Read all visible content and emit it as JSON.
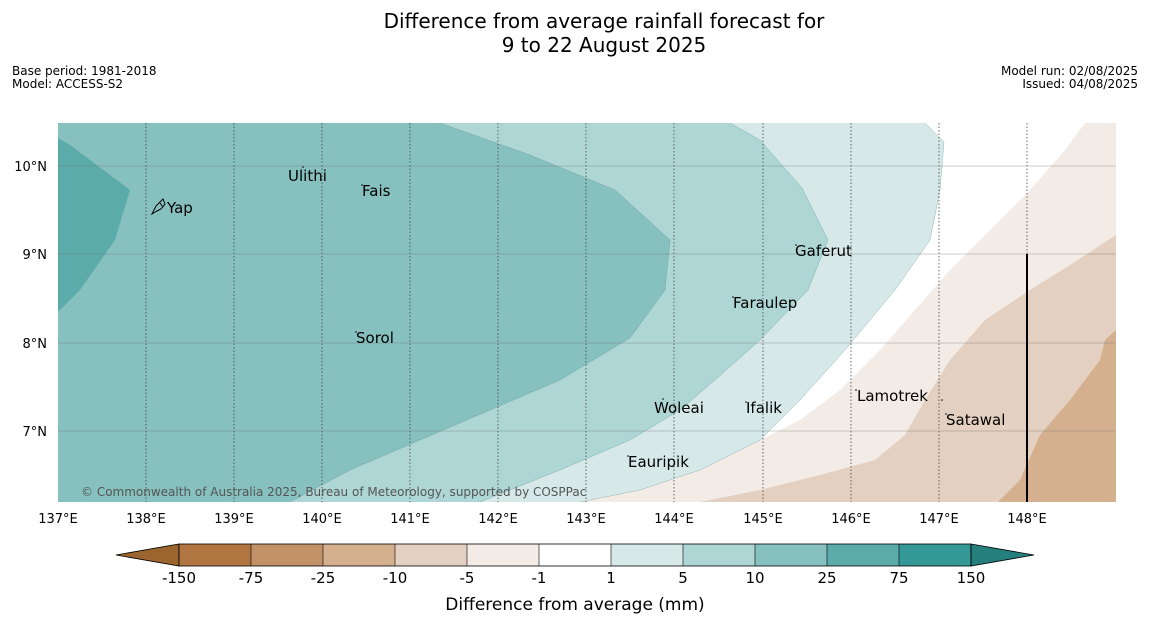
{
  "title": {
    "line1": "Difference from average rainfall forecast for",
    "line2": "9 to 22 August 2025"
  },
  "meta_left": {
    "base_period": "Base period: 1981-2018",
    "model": "Model: ACCESS-S2"
  },
  "meta_right": {
    "model_run": "Model run: 02/08/2025",
    "issued": "Issued: 04/08/2025"
  },
  "copyright": "© Commonwealth of Australia 2025, Bureau of Meteorology, supported by COSPPac",
  "axes": {
    "x_ticks": [
      "137°E",
      "138°E",
      "139°E",
      "140°E",
      "141°E",
      "142°E",
      "143°E",
      "144°E",
      "145°E",
      "146°E",
      "147°E",
      "148°E"
    ],
    "y_ticks": [
      "10°N",
      "9°N",
      "8°N",
      "7°N"
    ]
  },
  "places": {
    "yap": "Yap",
    "ulithi": "Ulithi",
    "fais": "Fais",
    "gaferut": "Gaferut",
    "faraulep": "Faraulep",
    "sorol": "Sorol",
    "woleai": "Woleai",
    "ifalik": "Ifalik",
    "lamotrek": "Lamotrek",
    "satawal": "Satawal",
    "eauripik": "Eauripik"
  },
  "colorbar": {
    "ticks": [
      "-150",
      "-75",
      "-25",
      "-10",
      "-5",
      "-1",
      "1",
      "5",
      "10",
      "25",
      "75",
      "150"
    ],
    "label": "Difference from average (mm)",
    "colors": {
      "extend_low": "#9b6530",
      "bin_-150_-75": "#b07540",
      "bin_-75_-25": "#c29167",
      "bin_-25_-10": "#d4b08e",
      "bin_-10_-5": "#e3d0c0",
      "bin_-5_-1": "#f3ece6",
      "bin_-1_1": "#ffffff",
      "bin_1_5": "#d6e9e8",
      "bin_5_10": "#add6d5",
      "bin_10_25": "#86c0bf",
      "bin_25_75": "#5aabaa",
      "bin_75_150": "#339896",
      "extend_high": "#257f7d"
    }
  }
}
